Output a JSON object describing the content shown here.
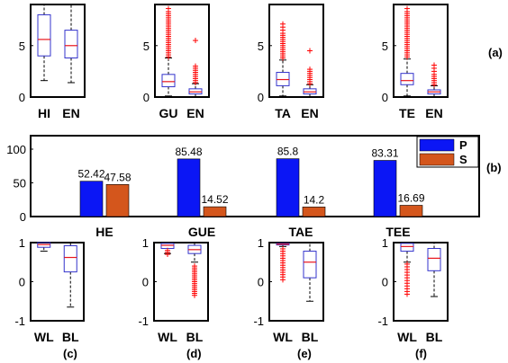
{
  "colors": {
    "box": "#3333cc",
    "median": "#e8141c",
    "outlier": "#ff0000",
    "whisker": "#000000",
    "bar_p": "#0b16f5",
    "bar_s": "#d4561c",
    "frame": "#000000"
  },
  "chart_data": [
    {
      "type": "box",
      "ylim": [
        0,
        9
      ],
      "yticks": [
        0,
        5
      ],
      "categories": [
        "HI",
        "EN"
      ],
      "boxes": [
        {
          "q1": 4.0,
          "median": 5.6,
          "q3": 8.0,
          "whisker_low": 1.6,
          "whisker_high": 9.0,
          "outliers": []
        },
        {
          "q1": 3.8,
          "median": 5.0,
          "q3": 6.5,
          "whisker_low": 1.4,
          "whisker_high": 9.0,
          "outliers": []
        }
      ]
    },
    {
      "type": "box",
      "ylim": [
        0,
        9
      ],
      "yticks": [
        0,
        5
      ],
      "categories": [
        "GU",
        "EN"
      ],
      "boxes": [
        {
          "q1": 1.0,
          "median": 1.5,
          "q3": 2.2,
          "whisker_low": 0.1,
          "whisker_high": 3.8,
          "outliers": [
            3.9,
            4.1,
            4.3,
            4.5,
            4.7,
            4.9,
            5.1,
            5.3,
            5.5,
            5.7,
            5.9,
            6.1,
            6.3,
            6.5,
            6.7,
            6.9,
            7.1,
            7.3,
            7.5,
            7.7,
            7.9,
            8.1,
            8.3,
            8.6
          ]
        },
        {
          "q1": 0.3,
          "median": 0.5,
          "q3": 0.8,
          "whisker_low": 0.0,
          "whisker_high": 1.3,
          "outliers": [
            1.4,
            1.6,
            1.8,
            2.0,
            2.2,
            2.4,
            2.6,
            2.8,
            3.0,
            5.5
          ]
        }
      ]
    },
    {
      "type": "box",
      "ylim": [
        0,
        9
      ],
      "yticks": [
        0,
        5
      ],
      "categories": [
        "TA",
        "EN"
      ],
      "boxes": [
        {
          "q1": 1.1,
          "median": 1.7,
          "q3": 2.4,
          "whisker_low": 0.1,
          "whisker_high": 3.6,
          "outliers": [
            3.8,
            4.0,
            4.2,
            4.4,
            4.6,
            4.8,
            5.0,
            5.2,
            5.4,
            5.6,
            5.8,
            6.0,
            6.2,
            6.5,
            6.8,
            7.1
          ]
        },
        {
          "q1": 0.3,
          "median": 0.5,
          "q3": 0.8,
          "whisker_low": 0.0,
          "whisker_high": 1.2,
          "outliers": [
            1.3,
            1.5,
            1.7,
            1.9,
            2.1,
            2.3,
            2.5,
            2.7,
            4.5
          ]
        }
      ]
    },
    {
      "type": "box",
      "ylim": [
        0,
        9
      ],
      "yticks": [
        0,
        5
      ],
      "categories": [
        "TE",
        "EN"
      ],
      "boxes": [
        {
          "q1": 1.2,
          "median": 1.6,
          "q3": 2.3,
          "whisker_low": 0.1,
          "whisker_high": 3.7,
          "outliers": [
            3.9,
            4.1,
            4.3,
            4.5,
            4.7,
            4.9,
            5.1,
            5.3,
            5.5,
            5.7,
            5.9,
            6.1,
            6.3,
            6.5,
            6.7,
            6.9,
            7.1,
            7.3,
            7.5,
            7.7,
            7.9,
            8.1,
            8.3,
            8.6
          ]
        },
        {
          "q1": 0.3,
          "median": 0.5,
          "q3": 0.7,
          "whisker_low": 0.0,
          "whisker_high": 1.1,
          "outliers": [
            1.2,
            1.4,
            1.6,
            1.8,
            2.0,
            2.2,
            2.5,
            2.8,
            3.1
          ]
        }
      ]
    },
    {
      "type": "bar",
      "categories": [
        "HE",
        "GUE",
        "TAE",
        "TEE"
      ],
      "series": [
        {
          "name": "P",
          "values": [
            52.42,
            85.48,
            85.8,
            83.31
          ]
        },
        {
          "name": "S",
          "values": [
            47.58,
            14.52,
            14.2,
            16.69
          ]
        }
      ],
      "data_labels": [
        [
          "52.42",
          "85.48",
          "85.8",
          "83.31"
        ],
        [
          "47.58",
          "14.52",
          "14.2",
          "16.69"
        ]
      ],
      "ylim": [
        0,
        120
      ],
      "yticks": [
        0,
        50,
        100
      ],
      "legend": "top-right"
    },
    {
      "type": "box",
      "ylim": [
        -1,
        1
      ],
      "yticks": [
        -1,
        0,
        1
      ],
      "categories": [
        "WL",
        "BL"
      ],
      "boxes": [
        {
          "q1": 0.88,
          "median": 0.95,
          "q3": 1.0,
          "whisker_low": 0.78,
          "whisker_high": 1.0,
          "outliers": []
        },
        {
          "q1": 0.25,
          "median": 0.62,
          "q3": 0.92,
          "whisker_low": -0.65,
          "whisker_high": 1.0,
          "outliers": []
        }
      ]
    },
    {
      "type": "box",
      "ylim": [
        -1,
        1
      ],
      "yticks": [
        -1,
        0,
        1
      ],
      "categories": [
        "WL",
        "BL"
      ],
      "boxes": [
        {
          "q1": 0.85,
          "median": 0.93,
          "q3": 0.98,
          "whisker_low": 0.72,
          "whisker_high": 1.0,
          "outliers": [
            0.7,
            0.75,
            0.8
          ]
        },
        {
          "q1": 0.72,
          "median": 0.82,
          "q3": 0.93,
          "whisker_low": 0.5,
          "whisker_high": 1.0,
          "outliers": [
            -0.35,
            -0.3,
            -0.25,
            -0.2,
            -0.15,
            -0.1,
            -0.05,
            0.0,
            0.05,
            0.1,
            0.15,
            0.2,
            0.25,
            0.3,
            0.35,
            0.4
          ]
        }
      ]
    },
    {
      "type": "box",
      "ylim": [
        -1,
        1
      ],
      "yticks": [
        -1,
        0,
        1
      ],
      "categories": [
        "WL",
        "BL"
      ],
      "boxes": [
        {
          "q1": 0.94,
          "median": 0.96,
          "q3": 0.98,
          "whisker_low": 0.9,
          "whisker_high": 1.0,
          "outliers": [
            0.05,
            0.12,
            0.18,
            0.24,
            0.3,
            0.36,
            0.42,
            0.48,
            0.54,
            0.6,
            0.66,
            0.72,
            0.78,
            0.84
          ]
        },
        {
          "q1": 0.1,
          "median": 0.5,
          "q3": 0.78,
          "whisker_low": -0.5,
          "whisker_high": 1.0,
          "outliers": []
        }
      ]
    },
    {
      "type": "box",
      "ylim": [
        -1,
        1
      ],
      "yticks": [
        -1,
        0,
        1
      ],
      "categories": [
        "WL",
        "BL"
      ],
      "boxes": [
        {
          "q1": 0.78,
          "median": 0.9,
          "q3": 0.98,
          "whisker_low": 0.5,
          "whisker_high": 1.0,
          "outliers": [
            -0.32,
            -0.25,
            -0.18,
            -0.11,
            -0.04,
            0.03,
            0.1,
            0.17,
            0.24,
            0.31,
            0.38,
            0.45
          ]
        },
        {
          "q1": 0.28,
          "median": 0.6,
          "q3": 0.85,
          "whisker_low": -0.38,
          "whisker_high": 1.0,
          "outliers": []
        }
      ]
    }
  ],
  "panel_labels": {
    "a": "(a)",
    "b": "(b)",
    "c": "(c)",
    "d": "(d)",
    "e": "(e)",
    "f": "(f)"
  }
}
